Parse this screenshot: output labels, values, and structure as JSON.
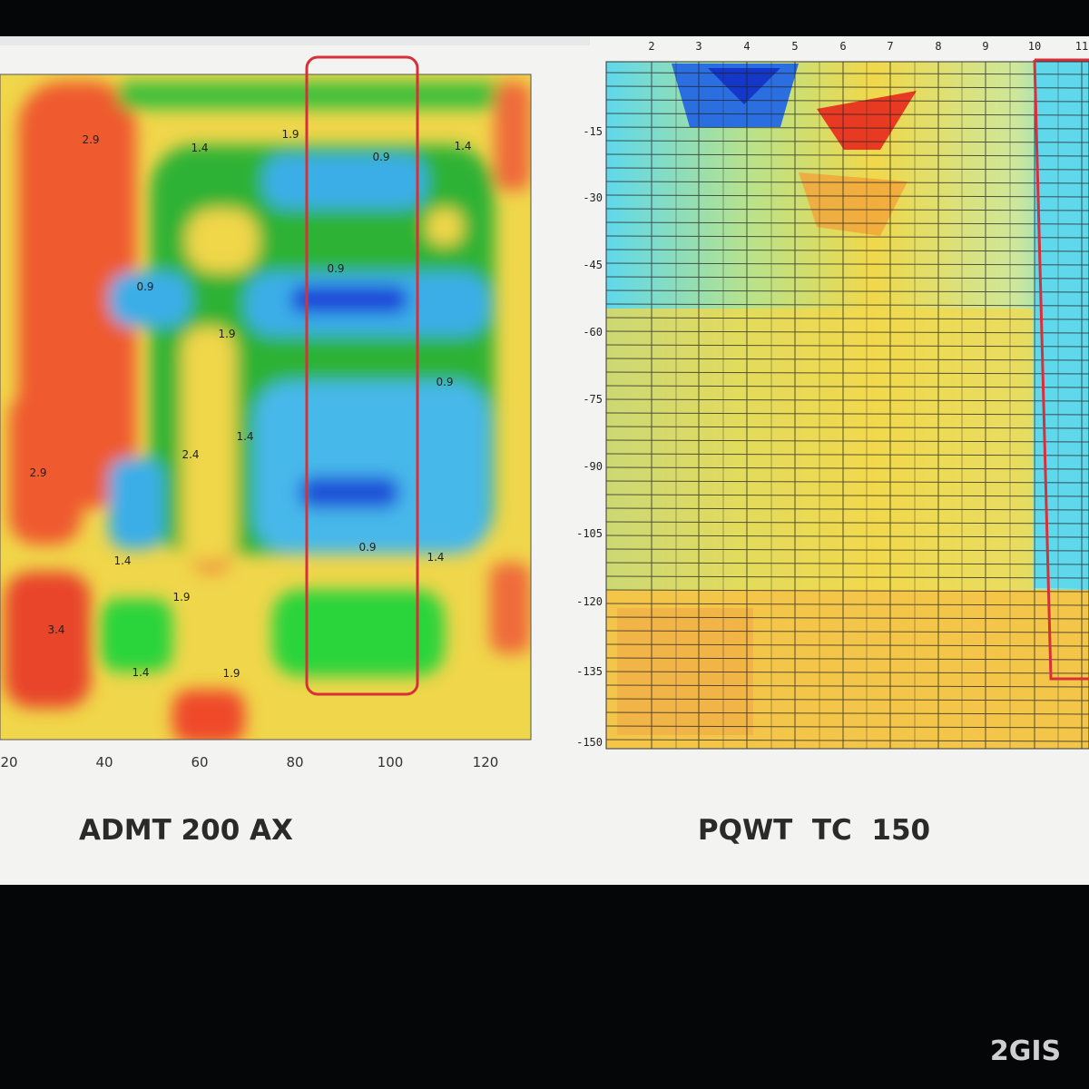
{
  "left_panel": {
    "caption": "ADMT 200 AX",
    "x_tick_labels": [
      "20",
      "40",
      "60",
      "80",
      "100",
      "120"
    ],
    "contour_labels": [
      "1.9",
      "1.4",
      "0.9",
      "2.9",
      "0.9",
      "0.9",
      "1.9",
      "0.9",
      "1.4",
      "2.9",
      "0.9",
      "1.4",
      "1.9",
      "3.4",
      "1.4",
      "1.9",
      "1.4",
      "2.4",
      "1.4"
    ]
  },
  "right_panel": {
    "caption": "PQWT  TC  150",
    "top_tick_labels": [
      "2",
      "3",
      "4",
      "5",
      "6",
      "7",
      "8",
      "9",
      "10",
      "11"
    ],
    "y_tick_labels": [
      "-15",
      "-30",
      "-45",
      "-60",
      "-75",
      "-90",
      "-105",
      "-120",
      "-135",
      "-150"
    ]
  },
  "watermark": "2GIS"
}
